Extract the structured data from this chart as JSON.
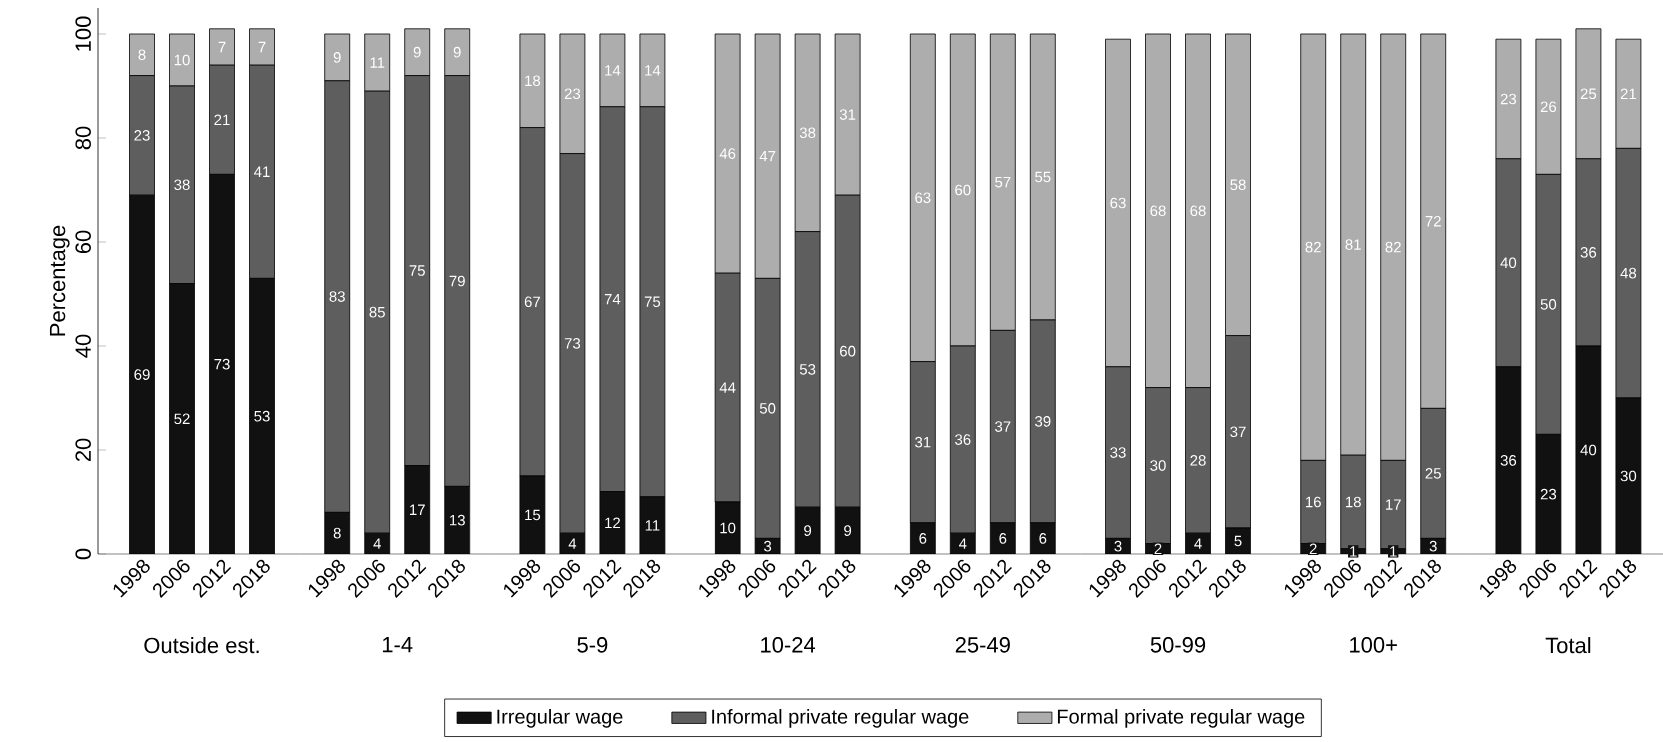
{
  "chart_data": [
    {
      "type": "bar",
      "stacked": true,
      "xlabel": "Outside est.",
      "ylabel": "Percentage",
      "categories": [
        "1998",
        "2006",
        "2012",
        "2018"
      ],
      "ylim": [
        0,
        105
      ],
      "yticks": [
        0,
        20,
        40,
        60,
        80,
        100
      ],
      "data_labels": true,
      "legend": "bottom",
      "series": [
        {
          "name": "Irregular wage",
          "color": "#111111",
          "values": [
            69,
            52,
            73,
            53
          ]
        },
        {
          "name": "Informal private regular wage",
          "color": "#5e5e5e",
          "values": [
            23,
            38,
            21,
            41
          ]
        },
        {
          "name": "Formal private regular wage",
          "color": "#adadad",
          "values": [
            8,
            10,
            7,
            7
          ]
        }
      ]
    },
    {
      "type": "bar",
      "stacked": true,
      "xlabel": "1-4",
      "categories": [
        "1998",
        "2006",
        "2012",
        "2018"
      ],
      "tick_labels": "x",
      "data_labels": true,
      "series": [
        {
          "color": "#111111",
          "values": [
            8,
            4,
            17,
            13
          ]
        },
        {
          "color": "#5e5e5e",
          "values": [
            83,
            85,
            75,
            79
          ]
        },
        {
          "color": "#adadad",
          "values": [
            9,
            11,
            9,
            9
          ]
        }
      ]
    },
    {
      "type": "bar",
      "stacked": true,
      "xlabel": "5-9",
      "categories": [
        "1998",
        "2006",
        "2012",
        "2018"
      ],
      "tick_labels": "x",
      "data_labels": true,
      "series": [
        {
          "color": "#111111",
          "values": [
            15,
            4,
            12,
            11
          ]
        },
        {
          "color": "#5e5e5e",
          "values": [
            67,
            73,
            74,
            75
          ]
        },
        {
          "color": "#adadad",
          "values": [
            18,
            23,
            14,
            14
          ]
        }
      ]
    },
    {
      "type": "bar",
      "stacked": true,
      "xlabel": "10-24",
      "categories": [
        "1998",
        "2006",
        "2012",
        "2018"
      ],
      "tick_labels": "x",
      "data_labels": true,
      "series": [
        {
          "color": "#111111",
          "values": [
            10,
            3,
            9,
            9
          ]
        },
        {
          "color": "#5e5e5e",
          "values": [
            44,
            50,
            53,
            60
          ]
        },
        {
          "color": "#adadad",
          "values": [
            46,
            47,
            38,
            31
          ]
        }
      ]
    },
    {
      "type": "bar",
      "stacked": true,
      "xlabel": "25-49",
      "categories": [
        "1998",
        "2006",
        "2012",
        "2018"
      ],
      "tick_labels": "x",
      "data_labels": true,
      "series": [
        {
          "color": "#111111",
          "values": [
            6,
            4,
            6,
            6
          ]
        },
        {
          "color": "#5e5e5e",
          "values": [
            31,
            36,
            37,
            39
          ]
        },
        {
          "color": "#adadad",
          "values": [
            63,
            60,
            57,
            55
          ]
        }
      ]
    },
    {
      "type": "bar",
      "stacked": true,
      "xlabel": "50-99",
      "categories": [
        "1998",
        "2006",
        "2012",
        "2018"
      ],
      "tick_labels": "x",
      "data_labels": true,
      "series": [
        {
          "color": "#111111",
          "values": [
            3,
            2,
            4,
            5
          ]
        },
        {
          "color": "#5e5e5e",
          "values": [
            33,
            30,
            28,
            37
          ]
        },
        {
          "color": "#adadad",
          "values": [
            63,
            68,
            68,
            58
          ]
        }
      ]
    },
    {
      "type": "bar",
      "stacked": true,
      "xlabel": "100+",
      "categories": [
        "1998",
        "2006",
        "2012",
        "2018"
      ],
      "tick_labels": "x",
      "data_labels": true,
      "series": [
        {
          "color": "#111111",
          "values": [
            2,
            1,
            1,
            3
          ]
        },
        {
          "color": "#5e5e5e",
          "values": [
            16,
            18,
            17,
            25
          ]
        },
        {
          "color": "#adadad",
          "values": [
            82,
            81,
            82,
            72
          ]
        }
      ]
    },
    {
      "type": "bar",
      "stacked": true,
      "xlabel": "Total",
      "categories": [
        "1998",
        "2006",
        "2012",
        "2018"
      ],
      "tick_labels": "x",
      "data_labels": true,
      "series": [
        {
          "color": "#111111",
          "values": [
            36,
            23,
            40,
            30
          ]
        },
        {
          "color": "#5e5e5e",
          "values": [
            40,
            50,
            36,
            48
          ]
        },
        {
          "color": "#adadad",
          "values": [
            23,
            26,
            25,
            21
          ]
        }
      ]
    }
  ]
}
